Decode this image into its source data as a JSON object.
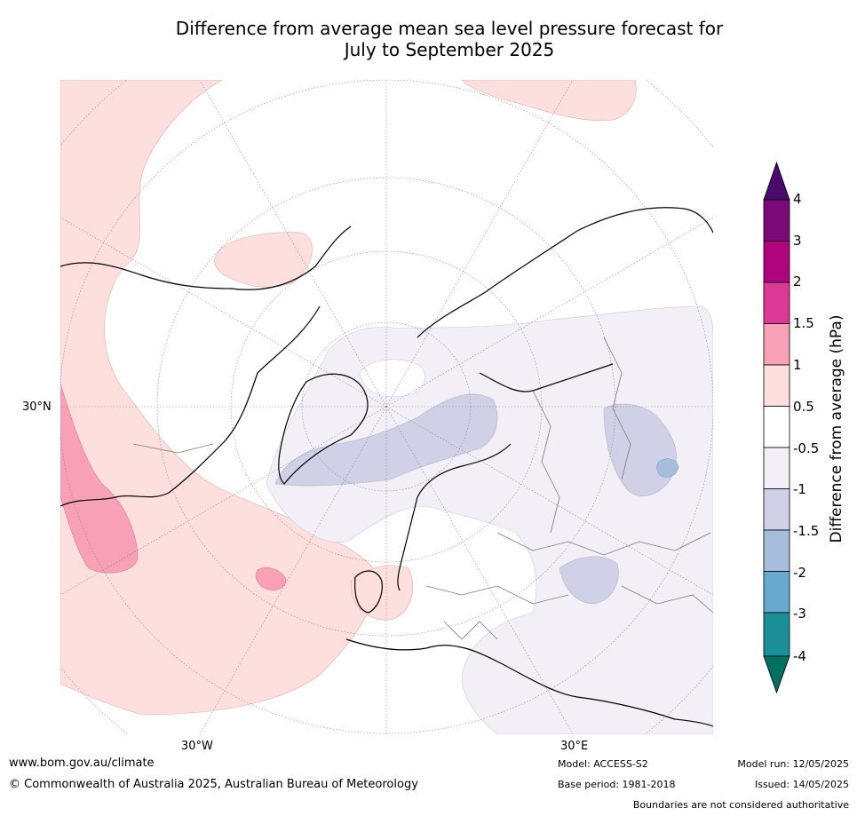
{
  "title_line1": "Difference from average mean sea level pressure forecast for",
  "title_line2": "July to September 2025",
  "lat_labels": [
    "30°N"
  ],
  "lon_labels": [
    "30°W",
    "30°E"
  ],
  "colorbar": {
    "title": "Difference from average (hPa)",
    "ticks": [
      "4",
      "3",
      "2",
      "1.5",
      "1",
      "0.5",
      "-0.5",
      "-1",
      "-1.5",
      "-2",
      "-3",
      "-4"
    ],
    "colors": {
      "above_4": "#4a0a6b",
      "3_to_4": "#7b0a78",
      "2_to_3": "#b0047f",
      "1.5_to_2": "#dc3996",
      "1_to_1.5": "#f7a0b6",
      "0.5_to_1": "#fde0dd",
      "-0.5_to_0.5": "#ffffff",
      "-1_to_-0.5": "#f3eff6",
      "-1.5_to_-1": "#d0d1e6",
      "-2_to_-1.5": "#a6bddb",
      "-3_to_-2": "#67a9cf",
      "-4_to_-3": "#1c9099",
      "below_-4": "#01705f"
    }
  },
  "footer": {
    "url": "www.bom.gov.au/climate",
    "copyright": "© Commonwealth of Australia 2025, Australian Bureau of Meteorology",
    "model": "Model: ACCESS-S2",
    "base_period": "Base period: 1981-2018",
    "model_run": "Model run: 12/05/2025",
    "issued": "Issued: 14/05/2025",
    "disclaimer": "Boundaries are not considered authoritative"
  }
}
